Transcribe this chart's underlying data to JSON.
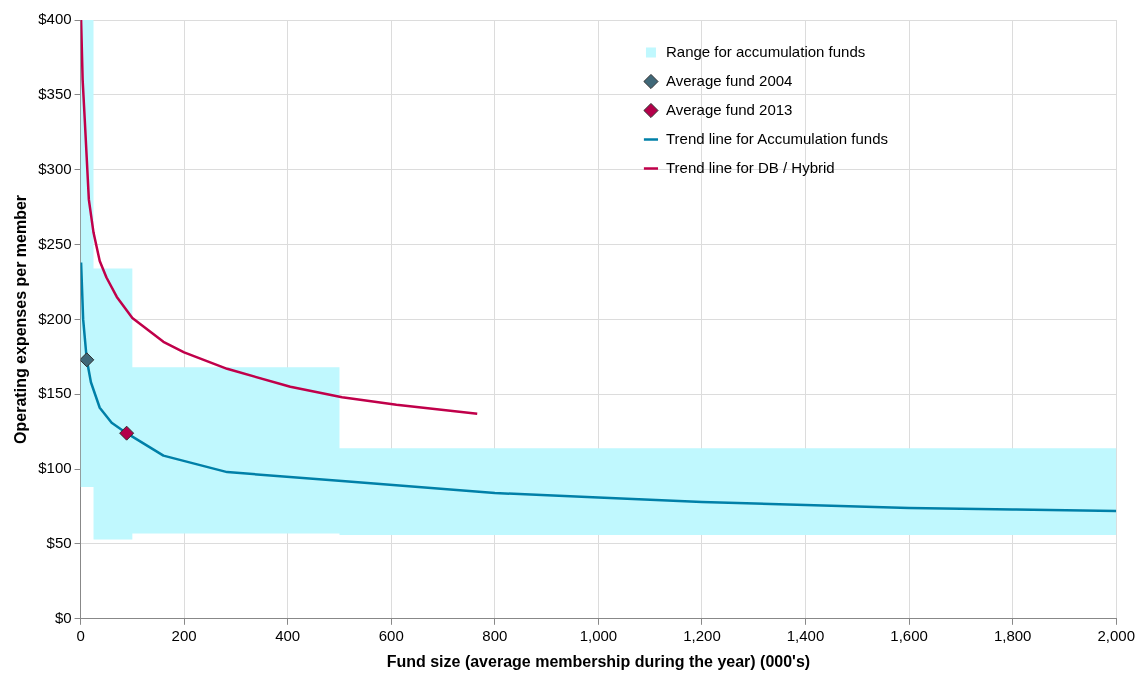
{
  "chart_data": {
    "type": "line",
    "xlabel": "Fund size (average membership during the year) (000's)",
    "ylabel": "Operating expenses per member",
    "xlim": [
      0,
      2000
    ],
    "ylim": [
      0,
      400
    ],
    "xticks": [
      0,
      {
        "value": 200,
        "label": "200"
      },
      {
        "value": 400,
        "label": "400"
      },
      {
        "value": 600,
        "label": "600"
      },
      {
        "value": 800,
        "label": "800"
      },
      {
        "value": 1000,
        "label": "1,000"
      },
      {
        "value": 1200,
        "label": "1,200"
      },
      {
        "value": 1400,
        "label": "1,400"
      },
      {
        "value": 1600,
        "label": "1,600"
      },
      {
        "value": 1800,
        "label": "1,800"
      },
      {
        "value": 2000,
        "label": "2,000"
      }
    ],
    "yticks": [
      {
        "value": 0,
        "label": "$0"
      },
      {
        "value": 50,
        "label": "$50"
      },
      {
        "value": 100,
        "label": "$100"
      },
      {
        "value": 150,
        "label": "$150"
      },
      {
        "value": 200,
        "label": "$200"
      },
      {
        "value": 250,
        "label": "$250"
      },
      {
        "value": 300,
        "label": "$300"
      },
      {
        "value": 350,
        "label": "$350"
      },
      {
        "value": 400,
        "label": "$400"
      }
    ],
    "grid": true,
    "legend": "top right",
    "series": [
      {
        "name": "Range for accumulation funds",
        "type": "area",
        "color": "#c0f8fe",
        "x": [
          0,
          25,
          25,
          100,
          100,
          500,
          500,
          2000
        ],
        "values": [
          null,
          null,
          null,
          null,
          null,
          null,
          null,
          null
        ],
        "upper": [
          400,
          400,
          234,
          234,
          168,
          168,
          114,
          114
        ],
        "lower": [
          88,
          88,
          53,
          53,
          57,
          57,
          56,
          56
        ]
      },
      {
        "name": "Average fund 2004",
        "type": "scatter",
        "marker": "diamond",
        "color": "#406878",
        "x": [
          12
        ],
        "values": [
          173
        ]
      },
      {
        "name": "Average fund 2013",
        "type": "scatter",
        "marker": "diamond",
        "color": "#b4004a",
        "x": [
          89
        ],
        "values": [
          124
        ]
      },
      {
        "name": "Trend line for Accumulation funds",
        "type": "line",
        "marker": "none",
        "line_style": "solid",
        "color": "#0080a8",
        "x": [
          1,
          5,
          12,
          20,
          37,
          60,
          89,
          160,
          283,
          505,
          800,
          1000,
          1200,
          1400,
          1600,
          1800,
          2000
        ],
        "values": [
          238,
          200,
          173,
          158,
          141,
          131,
          124,
          109,
          98,
          92,
          84,
          81,
          78,
          76,
          74,
          73,
          72
        ]
      },
      {
        "name": "Trend line for DB / Hybrid",
        "type": "line",
        "marker": "none",
        "line_style": "solid",
        "color": "#c0004a",
        "x": [
          1,
          4,
          8,
          16,
          25,
          37,
          50,
          70,
          100,
          160,
          200,
          283,
          405,
          505,
          610,
          766
        ],
        "values": [
          400,
          360,
          334,
          280,
          258,
          239,
          228,
          215,
          201,
          185,
          178,
          167,
          155,
          148,
          143,
          137
        ]
      }
    ]
  }
}
